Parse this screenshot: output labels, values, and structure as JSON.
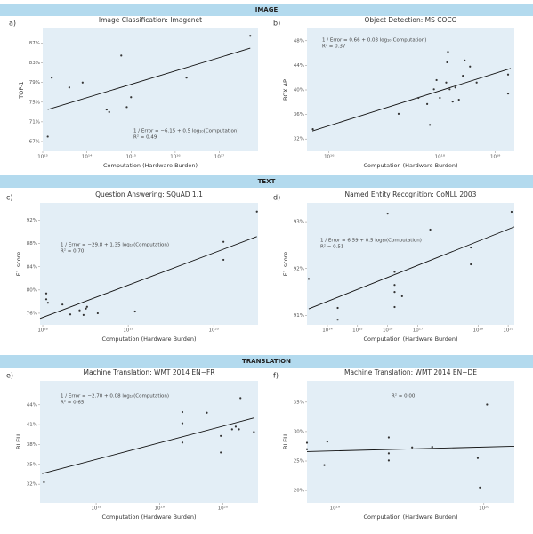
{
  "sections": [
    "IMAGE",
    "TEXT",
    "TRANSLATION"
  ],
  "chart_data": [
    {
      "type": "scatter",
      "panel_label": "a)",
      "title": "Image Classification: Imagenet",
      "x_label": "Computation (Hardware Burden)",
      "y_label": "TOP-1",
      "xscale": "log",
      "xlim": [
        10000000000000.0,
        7.5e+17
      ],
      "xticks": [
        {
          "value": 10000000000000.0,
          "label": "10¹³"
        },
        {
          "value": 100000000000000.0,
          "label": "10¹⁴"
        },
        {
          "value": 1000000000000000.0,
          "label": "10¹⁵"
        },
        {
          "value": 1e+16,
          "label": "10¹⁶"
        },
        {
          "value": 1e+17,
          "label": "10¹⁷"
        }
      ],
      "ylim": [
        65,
        90
      ],
      "yticks": [
        {
          "value": 67,
          "label": "67%"
        },
        {
          "value": 71,
          "label": "71%"
        },
        {
          "value": 75,
          "label": "75%"
        },
        {
          "value": 79,
          "label": "79%"
        },
        {
          "value": 83,
          "label": "83%"
        },
        {
          "value": 87,
          "label": "87%"
        }
      ],
      "x": [
        13000000000000.0,
        16000000000000.0,
        40000000000000.0,
        80000000000000.0,
        280000000000000.0,
        320000000000000.0,
        600000000000000.0,
        800000000000000.0,
        1000000000000000.0,
        1.8e+16,
        5e+17
      ],
      "values": [
        68,
        80,
        78,
        79,
        73.5,
        73,
        84.5,
        74,
        76,
        80,
        88.5
      ],
      "color": "#333333",
      "trend_line": {
        "x": [
          13000000000000.0,
          5e+17
        ],
        "y": [
          73.5,
          86
        ]
      },
      "annotations": [
        "1 / Error = −6.15 + 0.5 log₁₀(Computation)",
        "R² = 0.49"
      ]
    },
    {
      "type": "scatter",
      "panel_label": "b)",
      "title": "Object Detection: MS COCO",
      "x_label": "Computation (Hardware Burden)",
      "y_label": "BOX AP",
      "xscale": "log",
      "xlim": [
        4000000000000000.0,
        2.2e+19
      ],
      "xticks": [
        {
          "value": 1e+16,
          "label": "10¹⁶"
        },
        {
          "value": 1e+18,
          "label": "10¹⁸"
        },
        {
          "value": 1e+19,
          "label": "10¹⁹"
        }
      ],
      "ylim": [
        30,
        50
      ],
      "yticks": [
        {
          "value": 32,
          "label": "32%"
        },
        {
          "value": 36,
          "label": "36%"
        },
        {
          "value": 40,
          "label": "40%"
        },
        {
          "value": 44,
          "label": "44%"
        },
        {
          "value": 48,
          "label": "48%"
        }
      ],
      "x": [
        5100000000000000.0,
        1.8e+17,
        4.1e+17,
        5.9e+17,
        6.6e+17,
        7.8e+17,
        8.7e+17,
        1e+18,
        1.3e+18,
        1.35e+18,
        1.4e+18,
        1.5e+18,
        1.7e+18,
        1.9e+18,
        2.2e+18,
        2.6e+18,
        2.8e+18,
        3.5e+18,
        4.6e+18,
        1.7e+19,
        1.7e+19
      ],
      "values": [
        33.6,
        36.1,
        38.7,
        37.7,
        34.3,
        40.1,
        41.6,
        38.7,
        41.2,
        44.5,
        46.2,
        40.1,
        38.1,
        40.4,
        38.4,
        42.3,
        44.8,
        43.8,
        41.2,
        42.5,
        39.4
      ],
      "color": "#333333",
      "trend_line": {
        "x": [
          5000000000000000.0,
          1.9e+19
        ],
        "y": [
          33.3,
          43.5
        ]
      },
      "annotations": [
        "1 / Error = 0.66 + 0.03 log₁₀(Computation)",
        "R² = 0.37"
      ]
    },
    {
      "type": "scatter",
      "panel_label": "c)",
      "title": "Question Answering: SQuAD 1.1",
      "x_label": "Computation (Hardware Burden)",
      "y_label": "F1 score",
      "xscale": "log",
      "xlim": [
        9.3e+17,
        3.3e+20
      ],
      "xticks": [
        {
          "value": 1e+18,
          "label": "10¹⁸"
        },
        {
          "value": 1e+19,
          "label": "10¹⁹"
        },
        {
          "value": 1e+20,
          "label": "10²⁰"
        }
      ],
      "ylim": [
        74,
        95
      ],
      "yticks": [
        {
          "value": 76,
          "label": "76%"
        },
        {
          "value": 80,
          "label": "80%"
        },
        {
          "value": 84,
          "label": "84%"
        },
        {
          "value": 88,
          "label": "88%"
        },
        {
          "value": 92,
          "label": "92%"
        }
      ],
      "x": [
        1.1e+18,
        1.1e+18,
        1.15e+18,
        1.7e+18,
        2.1e+18,
        2.7e+18,
        3e+18,
        3.2e+18,
        3.3e+18,
        4.4e+18,
        1.2e+19,
        1.3e+20,
        1.3e+20,
        3.2e+20
      ],
      "values": [
        79.4,
        78.4,
        77.8,
        77.5,
        75.8,
        76.5,
        75.7,
        76.8,
        77.1,
        76,
        76.3,
        88.3,
        85.2,
        93.5
      ],
      "color": "#333333",
      "trend_line": {
        "x": [
          9.3e+17,
          3.2e+20
        ],
        "y": [
          75.1,
          89.2
        ]
      },
      "annotations": [
        "1 / Error = −29.8 + 1.35 log₁₀(Computation)",
        "R² = 0.70"
      ]
    },
    {
      "type": "scatter",
      "panel_label": "d)",
      "title": "Named Entity Recognition: CoNLL 2003",
      "x_label": "Computation (Hardware Burden)",
      "y_label": "F1 score",
      "xscale": "log",
      "xlim": [
        21000000000000.0,
        1.6e+20
      ],
      "xticks": [
        {
          "value": 100000000000000.0,
          "label": "10¹⁴"
        },
        {
          "value": 1000000000000000.0,
          "label": "10¹⁵"
        },
        {
          "value": 1e+16,
          "label": "10¹⁶"
        },
        {
          "value": 1e+17,
          "label": "10¹⁷"
        },
        {
          "value": 1e+19,
          "label": "10¹⁹"
        },
        {
          "value": 1e+20,
          "label": "10²⁰"
        }
      ],
      "ylim": [
        90.8,
        93.4
      ],
      "yticks": [
        {
          "value": 91,
          "label": "91%"
        },
        {
          "value": 92,
          "label": "92%"
        },
        {
          "value": 93,
          "label": "93%"
        }
      ],
      "x": [
        24000000000000.0,
        220000000000000.0,
        220000000000000.0,
        1e+16,
        1.7e+16,
        1.7e+16,
        1.7e+16,
        1.7e+16,
        3e+16,
        2.6e+17,
        5.8e+18,
        5.8e+18,
        1.3e+20
      ],
      "values": [
        91.78,
        91.16,
        90.91,
        93.17,
        91.93,
        91.65,
        91.5,
        91.18,
        91.41,
        92.83,
        92.45,
        92.09,
        93.21
      ],
      "color": "#333333",
      "trend_line": {
        "x": [
          24000000000000.0,
          1.6e+20
        ],
        "y": [
          91.14,
          92.89
        ]
      },
      "annotations": [
        "1 / Error = 6.59 + 0.5 log₁₀(Computation)",
        "R² = 0.51"
      ]
    },
    {
      "type": "scatter",
      "panel_label": "e)",
      "title": "Machine Translation: WMT 2014 EN−FR",
      "x_label": "Computation (Hardware Burden)",
      "y_label": "BLEU",
      "xscale": "log",
      "xlim": [
        1.3e+17,
        3.6e+20
      ],
      "xticks": [
        {
          "value": 1e+18,
          "label": "10¹⁸"
        },
        {
          "value": 1e+19,
          "label": "10¹⁹"
        },
        {
          "value": 1e+20,
          "label": "10²⁰"
        }
      ],
      "ylim": [
        29.2,
        47.6
      ],
      "yticks": [
        {
          "value": 32,
          "label": "32%"
        },
        {
          "value": 35,
          "label": "35%"
        },
        {
          "value": 38,
          "label": "38%"
        },
        {
          "value": 41,
          "label": "41%"
        },
        {
          "value": 44,
          "label": "44%"
        }
      ],
      "x": [
        1.5e+17,
        2.3e+19,
        2.3e+19,
        2.3e+19,
        5.6e+19,
        9.3e+19,
        9.3e+19,
        1.4e+20,
        1.6e+20,
        1.8e+20,
        1.9e+20,
        3.1e+20
      ],
      "values": [
        32.3,
        41.2,
        42.9,
        38.3,
        42.8,
        39.3,
        36.8,
        40.3,
        40.7,
        40.3,
        45,
        39.9
      ],
      "color": "#333333",
      "trend_line": {
        "x": [
          1.4e+17,
          3.1e+20
        ],
        "y": [
          33.6,
          42
        ]
      },
      "annotations": [
        "1 / Error = −2.70 + 0.08 log₁₀(Computation)",
        "R² = 0.65"
      ]
    },
    {
      "type": "scatter",
      "panel_label": "f)",
      "title": "Machine Translation: WMT 2014 EN−DE",
      "x_label": "Computation (Hardware Burden)",
      "y_label": "BLEU",
      "xscale": "log",
      "xlim": [
        6.5e+18,
        1.6e+20
      ],
      "xticks": [
        {
          "value": 1e+19,
          "label": "10¹⁹"
        },
        {
          "value": 1e+20,
          "label": "10²⁰"
        }
      ],
      "ylim": [
        17.9,
        38.6
      ],
      "yticks": [
        {
          "value": 20,
          "label": "20%"
        },
        {
          "value": 25,
          "label": "25%"
        },
        {
          "value": 30,
          "label": "30%"
        },
        {
          "value": 35,
          "label": "35%"
        }
      ],
      "x": [
        6.5e+18,
        6.5e+18,
        8.5e+18,
        8.9e+18,
        2.3e+19,
        2.3e+19,
        2.3e+19,
        3.3e+19,
        4.5e+19,
        9.1e+19,
        9.4e+19,
        1.05e+20
      ],
      "values": [
        28.1,
        27,
        24.3,
        28.3,
        29,
        26.3,
        25.1,
        27.3,
        27.4,
        25.5,
        20.5,
        34.6
      ],
      "color": "#333333",
      "trend_line": {
        "x": [
          6.5e+18,
          1.6e+20
        ],
        "y": [
          26.6,
          27.5
        ]
      },
      "annotations": [
        "R² = 0.00"
      ]
    }
  ]
}
